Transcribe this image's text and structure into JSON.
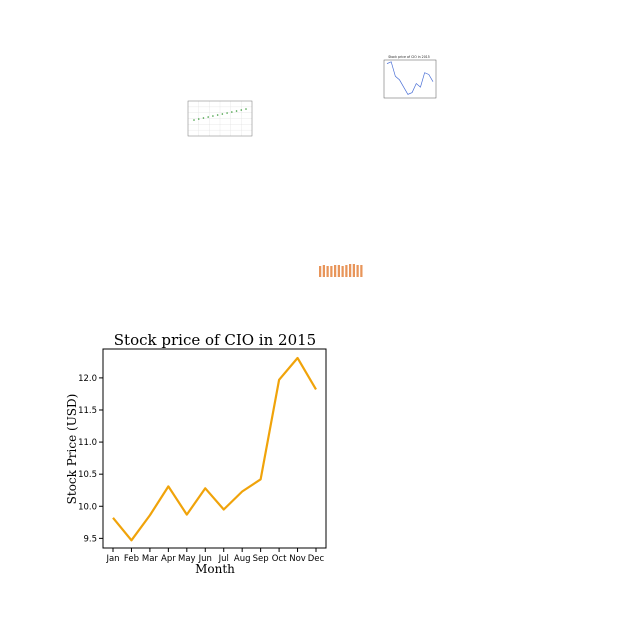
{
  "chart_data": [
    {
      "id": "main",
      "type": "line",
      "title": "Stock price of CIO in 2015",
      "xlabel": "Month",
      "ylabel": "Stock Price (USD)",
      "categories": [
        "Jan",
        "Feb",
        "Mar",
        "Apr",
        "May",
        "Jun",
        "Jul",
        "Aug",
        "Sep",
        "Oct",
        "Nov",
        "Dec"
      ],
      "series": [
        {
          "values": [
            9.82,
            9.47,
            9.86,
            10.31,
            9.87,
            10.28,
            9.95,
            10.23,
            10.42,
            11.97,
            12.31,
            11.82
          ],
          "color": "#f0a30a"
        }
      ],
      "yticks": [
        9.5,
        10.0,
        10.5,
        11.0,
        11.5,
        12.0
      ],
      "ytick_labels": [
        "9.5",
        "10.0",
        "10.5",
        "11.0",
        "11.5",
        "12.0"
      ],
      "ylim": [
        9.35,
        12.45
      ],
      "grid": false
    },
    {
      "id": "thumb-blue",
      "type": "line",
      "title": "Stock price of CIO in 2015",
      "categories": [
        "Jan",
        "Feb",
        "Mar",
        "Apr",
        "May",
        "Jun",
        "Jul",
        "Aug",
        "Sep",
        "Oct",
        "Nov",
        "Dec"
      ],
      "series": [
        {
          "values": [
            11.9,
            12.0,
            11.2,
            11.0,
            10.6,
            10.2,
            10.3,
            10.8,
            10.6,
            11.4,
            11.3,
            10.9
          ],
          "color": "#4a6fd6"
        }
      ],
      "ylim": [
        10.0,
        12.1
      ],
      "grid": false
    },
    {
      "id": "thumb-green",
      "type": "scatter",
      "series": [
        {
          "values": [
            3.6,
            3.7,
            3.8,
            3.9,
            4.0,
            4.1,
            4.2,
            4.3,
            4.4,
            4.5,
            4.6,
            4.7
          ],
          "color": "#3a9a3a"
        }
      ],
      "ylim": [
        2.0,
        5.5
      ],
      "grid": true
    },
    {
      "id": "thumb-orange",
      "type": "bar",
      "series": [
        {
          "values": [
            11,
            12,
            11,
            11,
            12,
            12,
            11,
            12,
            13,
            13,
            12,
            12
          ],
          "color": "#e8955a"
        }
      ],
      "ylim": [
        0,
        14
      ],
      "grid": false
    }
  ]
}
